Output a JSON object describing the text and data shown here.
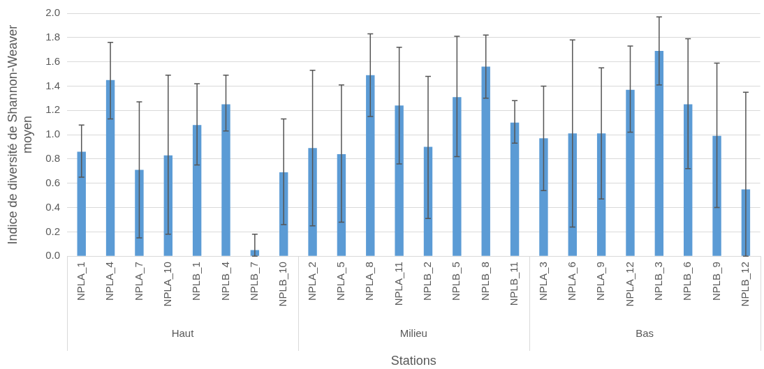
{
  "chart_data": {
    "type": "bar",
    "xlabel": "Stations",
    "ylabel": "Indice de diversité de Shannon-Weaver moyen",
    "categories": [
      "NPLA_1",
      "NPLA_4",
      "NPLA_7",
      "NPLA_10",
      "NPLB_1",
      "NPLB_4",
      "NPLB_7",
      "NPLB_10",
      "NPLA_2",
      "NPLA_5",
      "NPLA_8",
      "NPLA_11",
      "NPLB_2",
      "NPLB_5",
      "NPLB_8",
      "NPLB_11",
      "NPLA_3",
      "NPLA_6",
      "NPLA_9",
      "NPLA_12",
      "NPLB_3",
      "NPLB_6",
      "NPLB_9",
      "NPLB_12"
    ],
    "values": [
      0.86,
      1.45,
      0.71,
      0.83,
      1.08,
      1.25,
      0.05,
      0.69,
      0.89,
      0.84,
      1.49,
      1.24,
      0.9,
      1.31,
      1.56,
      1.1,
      0.97,
      1.01,
      1.01,
      1.37,
      1.69,
      1.25,
      0.99,
      0.55
    ],
    "errors": [
      [
        0.65,
        1.08
      ],
      [
        1.13,
        1.76
      ],
      [
        0.15,
        1.27
      ],
      [
        0.18,
        1.49
      ],
      [
        0.75,
        1.42
      ],
      [
        1.03,
        1.49
      ],
      [
        0,
        0.18
      ],
      [
        0.26,
        1.13
      ],
      [
        0.25,
        1.53
      ],
      [
        0.28,
        1.41
      ],
      [
        1.15,
        1.83
      ],
      [
        0.76,
        1.72
      ],
      [
        0.31,
        1.48
      ],
      [
        0.82,
        1.81
      ],
      [
        1.3,
        1.82
      ],
      [
        0.93,
        1.28
      ],
      [
        0.54,
        1.4
      ],
      [
        0.24,
        1.78
      ],
      [
        0.47,
        1.55
      ],
      [
        1.02,
        1.73
      ],
      [
        1.41,
        1.97
      ],
      [
        0.72,
        1.79
      ],
      [
        0.4,
        1.59
      ],
      [
        0,
        1.35
      ]
    ],
    "color": "#5b9bd5",
    "ylim": [
      0,
      2
    ],
    "yticks": [
      {
        "value": 0,
        "label": "0.0"
      },
      0.2,
      0.4,
      0.6,
      0.8,
      {
        "value": 1,
        "label": "1.0"
      },
      1.2,
      1.4,
      1.6,
      1.8,
      {
        "value": 2,
        "label": "2.0"
      }
    ],
    "grid": "y",
    "legend": false,
    "annotations": [
      "Haut",
      "Milieu",
      "Bas"
    ]
  }
}
